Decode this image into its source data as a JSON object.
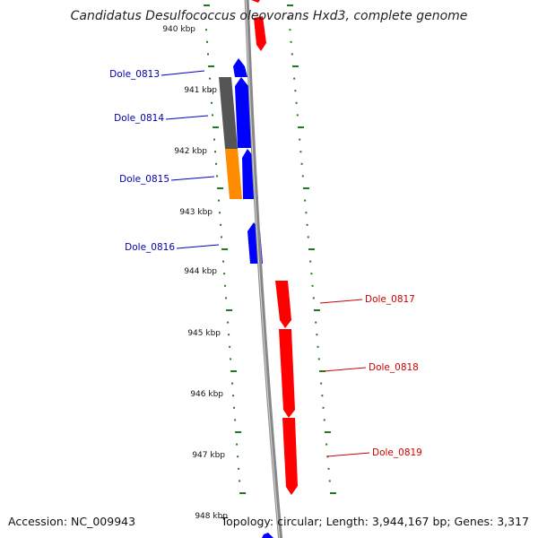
{
  "title": "Candidatus Desulfococcus oleovorans Hxd3, complete genome",
  "footer": {
    "accession": "Accession: NC_009943",
    "summary": "Topology: circular; Length: 3,944,167 bp; Genes: 3,317"
  },
  "colors": {
    "forward_gene": "#ff0000",
    "reverse_gene": "#0000ff",
    "gray_feature": "#555555",
    "orange_feature": "#ff8c00",
    "scale": "#1f7a1f",
    "backbone": "#888888",
    "forward_label": "#cc0000",
    "reverse_label": "#0000aa"
  },
  "kbp_labels": [
    "940 kbp",
    "941 kbp",
    "942 kbp",
    "943 kbp",
    "944 kbp",
    "945 kbp",
    "946 kbp",
    "947 kbp",
    "948 kbp"
  ],
  "gene_labels": [
    {
      "text": "Dole_0813",
      "strand": "reverse"
    },
    {
      "text": "Dole_0814",
      "strand": "reverse"
    },
    {
      "text": "Dole_0815",
      "strand": "reverse"
    },
    {
      "text": "Dole_0816",
      "strand": "reverse"
    },
    {
      "text": "Dole_0817",
      "strand": "forward"
    },
    {
      "text": "Dole_0818",
      "strand": "forward"
    },
    {
      "text": "Dole_0819",
      "strand": "forward"
    }
  ]
}
